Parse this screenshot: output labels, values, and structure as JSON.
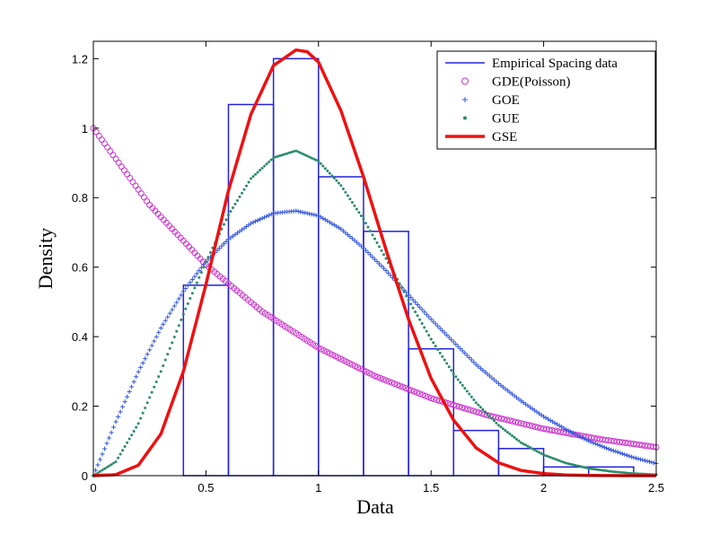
{
  "chart_data": {
    "type": "line",
    "xlabel": "Data",
    "ylabel": "Density",
    "xlim": [
      0,
      2.5
    ],
    "ylim": [
      0,
      1.25
    ],
    "x_ticks": [
      "0",
      "0.5",
      "1",
      "1.5",
      "2",
      "2.5"
    ],
    "y_ticks": [
      "0",
      "0.2",
      "0.4",
      "0.6",
      "0.8",
      "1",
      "1.2"
    ],
    "grid": false,
    "legend_position": "top-right",
    "histogram": {
      "name": "Empirical Spacing data",
      "color": "#2222dd",
      "bin_edges": [
        0.4,
        0.6,
        0.8,
        1.0,
        1.2,
        1.4,
        1.6,
        1.8,
        2.0,
        2.2,
        2.4
      ],
      "values": [
        0.548,
        1.068,
        1.2,
        0.86,
        0.703,
        0.365,
        0.13,
        0.078,
        0.025,
        0.025
      ]
    },
    "series": [
      {
        "name": "GDE(Poisson)",
        "marker": "circle",
        "color": "#cc33cc",
        "x": [
          0.0,
          0.25,
          0.5,
          0.75,
          1.0,
          1.25,
          1.5,
          1.75,
          2.0,
          2.25,
          2.5
        ],
        "values": [
          1.0,
          0.779,
          0.607,
          0.472,
          0.368,
          0.287,
          0.223,
          0.174,
          0.135,
          0.105,
          0.082
        ]
      },
      {
        "name": "GOE",
        "marker": "plus",
        "color": "#3355dd",
        "x": [
          0.0,
          0.1,
          0.2,
          0.3,
          0.4,
          0.5,
          0.6,
          0.7,
          0.8,
          0.9,
          1.0,
          1.1,
          1.2,
          1.3,
          1.4,
          1.5,
          1.6,
          1.7,
          1.8,
          1.9,
          2.0,
          2.1,
          2.2,
          2.3,
          2.4,
          2.5
        ],
        "values": [
          0.0,
          0.155,
          0.299,
          0.425,
          0.53,
          0.616,
          0.68,
          0.726,
          0.755,
          0.762,
          0.748,
          0.71,
          0.655,
          0.59,
          0.52,
          0.45,
          0.385,
          0.32,
          0.265,
          0.215,
          0.17,
          0.133,
          0.1,
          0.074,
          0.052,
          0.035
        ]
      },
      {
        "name": "GUE",
        "marker": "dot",
        "color": "#2a8a6a",
        "x": [
          0.0,
          0.1,
          0.2,
          0.3,
          0.4,
          0.5,
          0.6,
          0.7,
          0.8,
          0.9,
          1.0,
          1.1,
          1.2,
          1.3,
          1.4,
          1.5,
          1.6,
          1.7,
          1.8,
          1.9,
          2.0,
          2.1,
          2.2,
          2.3,
          2.4,
          2.5
        ],
        "values": [
          0.0,
          0.04,
          0.15,
          0.3,
          0.465,
          0.615,
          0.75,
          0.855,
          0.915,
          0.935,
          0.905,
          0.835,
          0.738,
          0.625,
          0.505,
          0.393,
          0.293,
          0.21,
          0.145,
          0.095,
          0.06,
          0.036,
          0.021,
          0.012,
          0.006,
          0.003
        ]
      },
      {
        "name": "GSE",
        "marker": "line",
        "color": "#ee1111",
        "x": [
          0.0,
          0.1,
          0.2,
          0.3,
          0.4,
          0.5,
          0.6,
          0.7,
          0.8,
          0.9,
          0.95,
          1.0,
          1.1,
          1.2,
          1.3,
          1.4,
          1.5,
          1.6,
          1.7,
          1.8,
          1.9,
          2.0,
          2.1,
          2.2,
          2.3,
          2.4,
          2.5
        ],
        "values": [
          0.0,
          0.003,
          0.03,
          0.12,
          0.3,
          0.55,
          0.82,
          1.04,
          1.18,
          1.225,
          1.22,
          1.19,
          1.05,
          0.86,
          0.65,
          0.45,
          0.28,
          0.16,
          0.08,
          0.037,
          0.015,
          0.006,
          0.002,
          0.0007,
          0.0002,
          0.0001,
          0.0
        ]
      }
    ]
  }
}
